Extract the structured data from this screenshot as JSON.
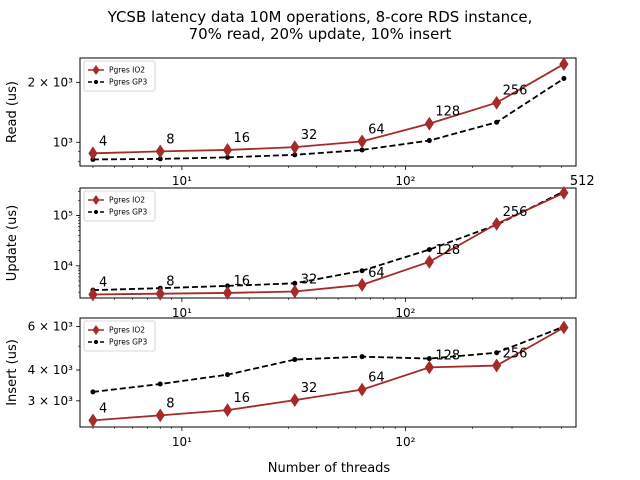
{
  "title": [
    "YCSB latency data 10M operations, 8-core RDS instance,",
    "70% read, 20% update, 10% insert"
  ],
  "xlabel": "Number of threads",
  "colors": {
    "io2": "#a52a2a",
    "gp3": "#000000"
  },
  "chart_data": [
    {
      "type": "line",
      "ylabel": "Read (us)",
      "xscale": "log",
      "yscale": "log",
      "xlim": [
        3.5,
        580
      ],
      "ylim": [
        760,
        2650
      ],
      "x": [
        4,
        8,
        16,
        32,
        64,
        128,
        256,
        512
      ],
      "yticks": [
        {
          "label": "10³",
          "value": 1000
        },
        {
          "label": "2 × 10³",
          "value": 2000
        }
      ],
      "xticks": [
        {
          "label": "10¹",
          "value": 10
        },
        {
          "label": "10²",
          "value": 100
        }
      ],
      "point_labels": [
        "4",
        "8",
        "16",
        "32",
        "64",
        "128",
        "256"
      ],
      "legend": "top-left",
      "grid": false,
      "series": [
        {
          "name": "Pgres IO2",
          "values": [
            880,
            900,
            915,
            945,
            1010,
            1240,
            1580,
            2470
          ]
        },
        {
          "name": "Pgres GP3",
          "values": [
            820,
            825,
            840,
            865,
            915,
            1020,
            1260,
            2090
          ]
        }
      ]
    },
    {
      "type": "line",
      "ylabel": "Update (us)",
      "xscale": "log",
      "yscale": "log",
      "xlim": [
        3.5,
        580
      ],
      "ylim": [
        2300,
        350000
      ],
      "x": [
        4,
        8,
        16,
        32,
        64,
        128,
        256,
        512
      ],
      "yticks": [
        {
          "label": "10⁴",
          "value": 10000
        },
        {
          "label": "10⁵",
          "value": 100000
        }
      ],
      "xticks": [
        {
          "label": "10¹",
          "value": 10
        },
        {
          "label": "10²",
          "value": 100
        }
      ],
      "point_labels": [
        "4",
        "8",
        "16",
        "32",
        "64",
        "128",
        "256",
        "512"
      ],
      "legend": "top-left",
      "grid": false,
      "series": [
        {
          "name": "Pgres IO2",
          "values": [
            2700,
            2800,
            2900,
            3100,
            4200,
            12000,
            68000,
            280000
          ]
        },
        {
          "name": "Pgres GP3",
          "values": [
            3300,
            3600,
            4000,
            4500,
            8000,
            21000,
            65000,
            300000
          ]
        }
      ]
    },
    {
      "type": "line",
      "ylabel": "Insert (us)",
      "xscale": "log",
      "yscale": "log",
      "xlim": [
        3.5,
        580
      ],
      "ylim": [
        2350,
        6500
      ],
      "x": [
        4,
        8,
        16,
        32,
        64,
        128,
        256,
        512
      ],
      "yticks": [
        {
          "label": "3 × 10³",
          "value": 3000
        },
        {
          "label": "4 × 10³",
          "value": 4000
        },
        {
          "label": "6 × 10³",
          "value": 6000
        }
      ],
      "xticks": [
        {
          "label": "10¹",
          "value": 10
        },
        {
          "label": "10²",
          "value": 100
        }
      ],
      "point_labels": [
        "4",
        "8",
        "16",
        "32",
        "64",
        "128",
        "256"
      ],
      "legend": "top-left",
      "grid": false,
      "series": [
        {
          "name": "Pgres IO2",
          "values": [
            2500,
            2620,
            2750,
            3020,
            3330,
            4100,
            4170,
            5950
          ]
        },
        {
          "name": "Pgres GP3",
          "values": [
            3260,
            3510,
            3830,
            4410,
            4530,
            4450,
            4700,
            6000
          ]
        }
      ]
    }
  ]
}
